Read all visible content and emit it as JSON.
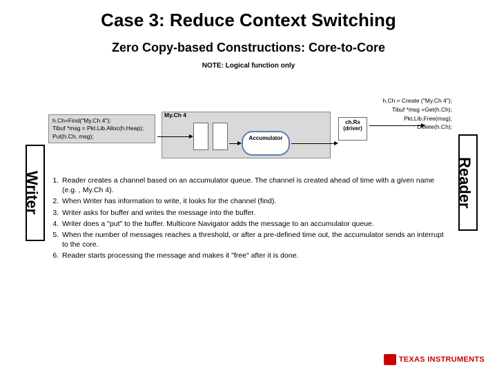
{
  "title": "Case 3: Reduce Context Switching",
  "subtitle": "Zero Copy-based Constructions: Core-to-Core",
  "note": "NOTE: Logical function only",
  "labels": {
    "writer": "Writer",
    "reader": "Reader",
    "mych4": "My.Ch 4",
    "accumulator": "Accumulator",
    "driver_l1": "ch.Rx",
    "driver_l2": "(driver)"
  },
  "writer_code": {
    "l1": "h.Ch=Find(\"My.Ch 4\");",
    "l2": "Tibuf *msg = Pkt.Lib.Alloc(h.Heap);",
    "l3": "Put(h.Ch, msg);"
  },
  "reader_code": {
    "l1": "h.Ch = Create (\"My.Ch 4\");",
    "l2": "Tibuf *msg =Get(h.Ch);",
    "l3": "Pkt.Lib.Free(msg);",
    "l4": "Delete(h.Ch);"
  },
  "steps": {
    "s1": "Reader creates a channel based on an accumulator queue. The channel is created ahead of time with a given name (e.g. , My.Ch 4).",
    "s2": "When Writer has information to write, it looks for the channel (find).",
    "s3": "Writer asks for buffer and writes the message into the buffer.",
    "s4": "Writer does a \"put\" to the buffer. Multicore Navigator adds the message to an accumulator queue.",
    "s5": "When the number of messages reaches a threshold, or after a pre-defined time out, the accumulator sends an interrupt to the core.",
    "s6": "Reader starts processing the message and makes it \"free\" after it is done."
  },
  "logo": "TEXAS INSTRUMENTS",
  "colors": {
    "title": "#000000",
    "gray_bg": "#d9d9d9",
    "accum_border": "#5a7fb0",
    "logo_red": "#cc0000"
  }
}
